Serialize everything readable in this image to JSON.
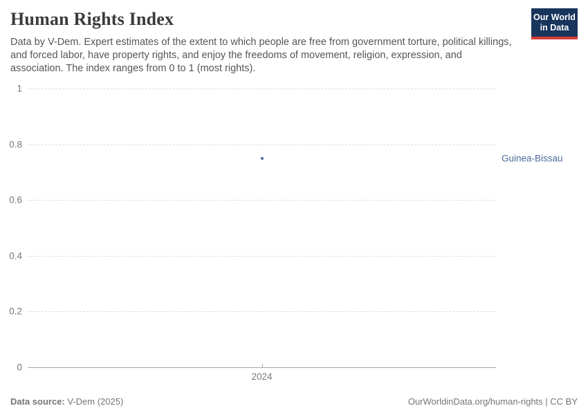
{
  "header": {
    "title": "Human Rights Index",
    "subtitle": "Data by V-Dem. Expert estimates of the extent to which people are free from government torture, political killings, and forced labor, have property rights, and enjoy the freedoms of movement, religion, expression, and association. The index ranges from 0 to 1 (most rights)."
  },
  "logo": {
    "line1": "Our World",
    "line2": "in Data",
    "bg_color": "#18355c",
    "bar_color": "#d73a33"
  },
  "chart_data": {
    "type": "scatter",
    "title": "Human Rights Index",
    "x": [
      2024
    ],
    "series": [
      {
        "name": "Guinea-Bissau",
        "values": [
          0.75
        ],
        "color": "#4C6A9C"
      }
    ],
    "ylim": [
      0,
      1
    ],
    "yticks": [
      0,
      0.2,
      0.4,
      0.6,
      0.8,
      1
    ],
    "xticks": [
      2024
    ],
    "xlabel": "",
    "ylabel": "",
    "grid": "horizontal-dashed",
    "legend_position": "right-of-point"
  },
  "footer": {
    "source_label": "Data source:",
    "source_value": " V-Dem (2025)",
    "attribution": "OurWorldinData.org/human-rights | CC BY"
  }
}
